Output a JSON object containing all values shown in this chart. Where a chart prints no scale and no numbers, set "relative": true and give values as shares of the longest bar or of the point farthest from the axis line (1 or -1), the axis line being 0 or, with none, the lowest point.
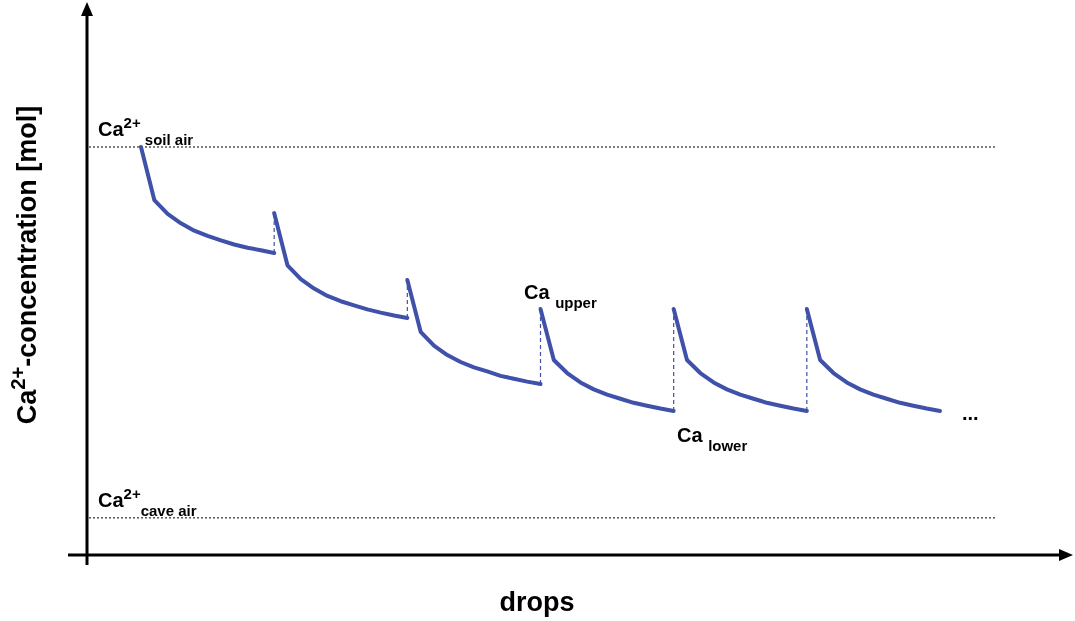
{
  "chart_data": {
    "type": "line",
    "relative": true,
    "xlabel": "drops",
    "ylabel": "Ca$^{2+}$-concentration [mol]",
    "categories": [
      null,
      null,
      null,
      null,
      null,
      null,
      null,
      null,
      null,
      null,
      null,
      null,
      null,
      null,
      null,
      null,
      null,
      null,
      null,
      null,
      null,
      null,
      null,
      null,
      null,
      null,
      null,
      null,
      null,
      null,
      null,
      null,
      null,
      null,
      null,
      null,
      null,
      null,
      null,
      null,
      null,
      null,
      null,
      null,
      null,
      null,
      null,
      null,
      null,
      null,
      null,
      null,
      null,
      null,
      null,
      null,
      null,
      null,
      null,
      null,
      null
    ],
    "series": [
      {
        "color": "#3f51a8",
        "values": [
          1.0,
          0.87,
          0.836,
          0.813,
          0.795,
          0.782,
          0.771,
          0.761,
          0.753,
          0.747,
          0.74,
          null,
          null,
          null,
          null,
          null,
          null,
          null,
          null,
          null,
          null,
          null,
          null,
          null,
          null,
          null,
          null,
          null,
          null,
          null,
          null,
          null,
          null,
          null,
          null,
          null,
          null,
          null,
          null,
          null,
          null,
          null,
          null,
          null,
          null,
          null,
          null,
          null,
          null,
          null,
          null,
          null,
          null,
          null,
          null,
          null,
          null,
          null,
          null,
          null,
          null
        ]
      },
      {
        "color": "#3f51a8",
        "values": [
          null,
          null,
          null,
          null,
          null,
          null,
          null,
          null,
          null,
          null,
          0.838,
          0.71,
          0.676,
          0.653,
          0.635,
          0.622,
          0.612,
          0.602,
          0.594,
          0.587,
          0.581,
          null,
          null,
          null,
          null,
          null,
          null,
          null,
          null,
          null,
          null,
          null,
          null,
          null,
          null,
          null,
          null,
          null,
          null,
          null,
          null,
          null,
          null,
          null,
          null,
          null,
          null,
          null,
          null,
          null,
          null,
          null,
          null,
          null,
          null,
          null,
          null,
          null,
          null,
          null,
          null
        ]
      },
      {
        "color": "#3f51a8",
        "values": [
          null,
          null,
          null,
          null,
          null,
          null,
          null,
          null,
          null,
          null,
          null,
          null,
          null,
          null,
          null,
          null,
          null,
          null,
          null,
          null,
          0.674,
          0.547,
          0.513,
          0.49,
          0.473,
          0.46,
          0.45,
          0.439,
          0.432,
          0.425,
          0.419,
          null,
          null,
          null,
          null,
          null,
          null,
          null,
          null,
          null,
          null,
          null,
          null,
          null,
          null,
          null,
          null,
          null,
          null,
          null,
          null,
          null,
          null,
          null,
          null,
          null,
          null,
          null,
          null,
          null,
          null
        ]
      },
      {
        "color": "#3f51a8",
        "values": [
          null,
          null,
          null,
          null,
          null,
          null,
          null,
          null,
          null,
          null,
          null,
          null,
          null,
          null,
          null,
          null,
          null,
          null,
          null,
          null,
          null,
          null,
          null,
          null,
          null,
          null,
          null,
          null,
          null,
          null,
          0.603,
          0.478,
          0.446,
          0.423,
          0.406,
          0.393,
          0.383,
          0.373,
          0.366,
          0.359,
          0.353,
          null,
          null,
          null,
          null,
          null,
          null,
          null,
          null,
          null,
          null,
          null,
          null,
          null,
          null,
          null,
          null,
          null,
          null,
          null,
          null
        ]
      },
      {
        "color": "#3f51a8",
        "values": [
          null,
          null,
          null,
          null,
          null,
          null,
          null,
          null,
          null,
          null,
          null,
          null,
          null,
          null,
          null,
          null,
          null,
          null,
          null,
          null,
          null,
          null,
          null,
          null,
          null,
          null,
          null,
          null,
          null,
          null,
          null,
          null,
          null,
          null,
          null,
          null,
          null,
          null,
          null,
          null,
          0.603,
          0.478,
          0.446,
          0.423,
          0.406,
          0.393,
          0.383,
          0.373,
          0.366,
          0.359,
          0.353,
          null,
          null,
          null,
          null,
          null,
          null,
          null,
          null,
          null,
          null
        ]
      },
      {
        "color": "#3f51a8",
        "values": [
          null,
          null,
          null,
          null,
          null,
          null,
          null,
          null,
          null,
          null,
          null,
          null,
          null,
          null,
          null,
          null,
          null,
          null,
          null,
          null,
          null,
          null,
          null,
          null,
          null,
          null,
          null,
          null,
          null,
          null,
          null,
          null,
          null,
          null,
          null,
          null,
          null,
          null,
          null,
          null,
          null,
          null,
          null,
          null,
          null,
          null,
          null,
          null,
          null,
          null,
          0.603,
          0.478,
          0.446,
          0.423,
          0.406,
          0.393,
          0.383,
          0.373,
          0.366,
          0.359,
          0.353
        ]
      }
    ],
    "ref_lines": [
      {
        "axis": "y",
        "value": 1.0,
        "label": "Ca$^{2+}$$_{ soil air}$",
        "color": "#000000",
        "line_style": "dotted"
      },
      {
        "axis": "y",
        "value": 0.091,
        "label": "Ca$^{2+}$$_{cave air}$",
        "color": "#000000",
        "line_style": "dotted"
      }
    ],
    "annotations": [
      "Ca $_{upper}$",
      "Ca $_{lower}$",
      "..."
    ]
  }
}
